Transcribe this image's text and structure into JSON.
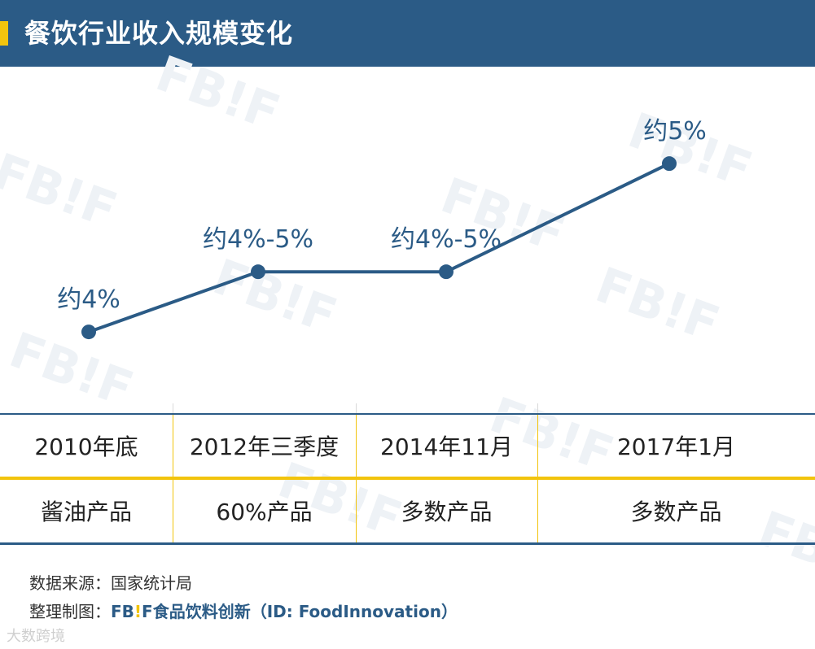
{
  "title": "餐饮行业收入规模变化",
  "colors": {
    "header_bg": "#2b5b86",
    "accent": "#f2c40d",
    "line": "#2b5b86",
    "grid": "#e0e0e0"
  },
  "watermark": "FB!F",
  "chart_data": {
    "type": "line",
    "title": "餐饮行业收入规模变化",
    "categories": [
      "2010年底",
      "2012年三季度",
      "2014年11月",
      "2017年1月"
    ],
    "series": [
      {
        "name": "收入规模变化",
        "values": [
          4.0,
          4.5,
          4.5,
          5.4
        ]
      }
    ],
    "data_labels": [
      "约4%",
      "约4%-5%",
      "约4%-5%",
      "约5%"
    ],
    "ylim": [
      3.5,
      5.8
    ],
    "xlabel": "",
    "ylabel": "",
    "grid": false
  },
  "table": {
    "dates": [
      "2010年底",
      "2012年三季度",
      "2014年11月",
      "2017年1月"
    ],
    "products": [
      "酱油产品",
      "60%产品",
      "多数产品",
      "多数产品"
    ]
  },
  "footer": {
    "source_label": "数据来源：",
    "source_value": "国家统计局",
    "made_label": "整理制图：",
    "brand_prefix": "FB",
    "brand_excl": "!",
    "brand_suffix": "F",
    "brand_rest": "食品饮料创新（ID: FoodInnovation）"
  },
  "corner_watermark": "大数跨境"
}
